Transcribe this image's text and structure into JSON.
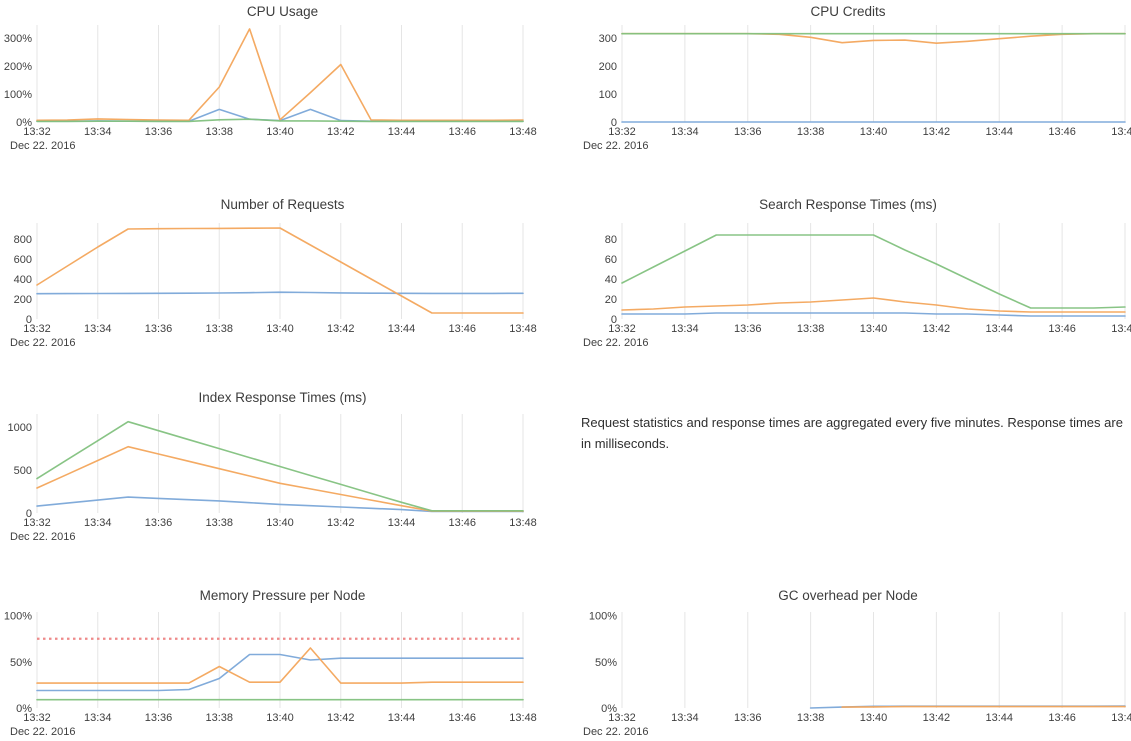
{
  "note": {
    "text": "Request statistics and response times are aggregated every five minutes. Response times are in milliseconds."
  },
  "style": {
    "gridline_color": "#e5e5e5",
    "title_color": "#3d3d3d",
    "tick_color": "#3f3f3f"
  },
  "chart_data": {
    "x_times": [
      "13:32",
      "13:33",
      "13:34",
      "13:35",
      "13:36",
      "13:37",
      "13:38",
      "13:39",
      "13:40",
      "13:41",
      "13:42",
      "13:43",
      "13:44",
      "13:45",
      "13:46",
      "13:47",
      "13:48"
    ],
    "x_tick_labels": [
      "13:32",
      "13:34",
      "13:36",
      "13:38",
      "13:40",
      "13:42",
      "13:44",
      "13:46",
      "13:48"
    ],
    "date_label": "Dec 22. 2016",
    "grid": "vertical-only",
    "legend": "none",
    "charts": [
      {
        "type": "line",
        "title": "CPU Usage",
        "ylim": [
          0,
          346
        ],
        "y_ticks": [
          {
            "value": 0,
            "label": "0%"
          },
          {
            "value": 100,
            "label": "100%"
          },
          {
            "value": 200,
            "label": "200%"
          },
          {
            "value": 300,
            "label": "300%"
          }
        ],
        "series": [
          {
            "name": "blue",
            "color": "#7aa6d8",
            "values": [
              3,
              3,
              4,
              3,
              3,
              3,
              45,
              10,
              5,
              45,
              5,
              3,
              3,
              3,
              3,
              3,
              3
            ]
          },
          {
            "name": "orange",
            "color": "#f3a55b",
            "values": [
              6,
              7,
              11,
              9,
              7,
              6,
              125,
              332,
              8,
              105,
              205,
              7,
              6,
              6,
              6,
              6,
              7
            ]
          },
          {
            "name": "green",
            "color": "#82c17e",
            "values": [
              2,
              2,
              3,
              3,
              2,
              2,
              8,
              10,
              4,
              4,
              3,
              2,
              2,
              2,
              2,
              2,
              2
            ]
          }
        ]
      },
      {
        "type": "line",
        "title": "CPU Credits",
        "ylim": [
          0,
          346
        ],
        "y_ticks": [
          {
            "value": 0,
            "label": "0"
          },
          {
            "value": 100,
            "label": "100"
          },
          {
            "value": 200,
            "label": "200"
          },
          {
            "value": 300,
            "label": "300"
          }
        ],
        "series": [
          {
            "name": "blue",
            "color": "#7aa6d8",
            "values": [
              0,
              0,
              0,
              0,
              0,
              0,
              0,
              0,
              0,
              0,
              0,
              0,
              0,
              0,
              0,
              0,
              0
            ]
          },
          {
            "name": "orange",
            "color": "#f3a55b",
            "values": [
              315,
              315,
              315,
              315,
              315,
              313,
              302,
              283,
              291,
              292,
              281,
              288,
              297,
              306,
              313,
              315,
              315
            ]
          },
          {
            "name": "green",
            "color": "#82c17e",
            "values": [
              315,
              315,
              315,
              315,
              315,
              315,
              315,
              315,
              315,
              315,
              315,
              315,
              315,
              315,
              315,
              315,
              315
            ]
          }
        ]
      },
      {
        "type": "line",
        "title": "Number of Requests",
        "ylim": [
          0,
          960
        ],
        "y_ticks": [
          {
            "value": 0,
            "label": "0"
          },
          {
            "value": 200,
            "label": "200"
          },
          {
            "value": 400,
            "label": "400"
          },
          {
            "value": 600,
            "label": "600"
          },
          {
            "value": 800,
            "label": "800"
          }
        ],
        "series": [
          {
            "name": "blue",
            "color": "#7aa6d8",
            "values": [
              253,
              254,
              255,
              256,
              257,
              258,
              260,
              263,
              268,
              265,
              261,
              258,
              257,
              256,
              256,
              256,
              257
            ]
          },
          {
            "name": "orange",
            "color": "#f3a55b",
            "values": [
              340,
              530,
              720,
              900,
              903,
              905,
              906,
              908,
              910,
              740,
              570,
              400,
              230,
              60,
              60,
              60,
              60
            ]
          }
        ]
      },
      {
        "type": "line",
        "title": "Search Response Times (ms)",
        "ylim": [
          0,
          96
        ],
        "y_ticks": [
          {
            "value": 0,
            "label": "0"
          },
          {
            "value": 20,
            "label": "20"
          },
          {
            "value": 40,
            "label": "40"
          },
          {
            "value": 60,
            "label": "60"
          },
          {
            "value": 80,
            "label": "80"
          }
        ],
        "series": [
          {
            "name": "blue",
            "color": "#7aa6d8",
            "values": [
              5,
              5,
              5,
              6,
              6,
              6,
              6,
              6,
              6,
              6,
              5,
              5,
              4,
              3,
              3,
              3,
              3
            ]
          },
          {
            "name": "orange",
            "color": "#f3a55b",
            "values": [
              9,
              10,
              12,
              13,
              14,
              16,
              17,
              19,
              21,
              17,
              14,
              10,
              8,
              7,
              7,
              7,
              7
            ]
          },
          {
            "name": "green",
            "color": "#82c17e",
            "values": [
              36,
              52,
              68,
              84,
              84,
              84,
              84,
              84,
              84,
              69,
              55,
              40,
              25,
              11,
              11,
              11,
              12
            ]
          }
        ]
      },
      {
        "type": "line",
        "title": "Index Response Times (ms)",
        "ylim": [
          0,
          1150
        ],
        "y_ticks": [
          {
            "value": 0,
            "label": "0"
          },
          {
            "value": 500,
            "label": "500"
          },
          {
            "value": 1000,
            "label": "1000"
          }
        ],
        "series": [
          {
            "name": "blue",
            "color": "#7aa6d8",
            "values": [
              80,
              115,
              150,
              185,
              170,
              155,
              140,
              120,
              100,
              85,
              70,
              55,
              40,
              18,
              18,
              18,
              18
            ]
          },
          {
            "name": "orange",
            "color": "#f3a55b",
            "values": [
              290,
              450,
              610,
              770,
              685,
              600,
              515,
              430,
              345,
              280,
              215,
              150,
              85,
              22,
              22,
              22,
              22
            ]
          },
          {
            "name": "green",
            "color": "#82c17e",
            "values": [
              400,
              620,
              840,
              1060,
              956,
              852,
              748,
              644,
              540,
              436,
              332,
              228,
              124,
              25,
              25,
              25,
              25
            ]
          }
        ]
      },
      {
        "type": "line",
        "title": "Memory Pressure per Node",
        "ylim": [
          0,
          104
        ],
        "y_ticks": [
          {
            "value": 0,
            "label": "0%"
          },
          {
            "value": 50,
            "label": "50%"
          },
          {
            "value": 100,
            "label": "100%"
          }
        ],
        "threshold": {
          "value": 75,
          "color": "#ee8a8a",
          "style": "dotted"
        },
        "series": [
          {
            "name": "blue",
            "color": "#7aa6d8",
            "values": [
              19,
              19,
              19,
              19,
              19,
              20,
              32,
              58,
              58,
              52,
              54,
              54,
              54,
              54,
              54,
              54,
              54
            ]
          },
          {
            "name": "orange",
            "color": "#f3a55b",
            "values": [
              27,
              27,
              27,
              27,
              27,
              27,
              45,
              28,
              28,
              65,
              27,
              27,
              27,
              28,
              28,
              28,
              28
            ]
          },
          {
            "name": "green",
            "color": "#82c17e",
            "values": [
              9,
              9,
              9,
              9,
              9,
              9,
              9,
              9,
              9,
              9,
              9,
              9,
              9,
              9,
              9,
              9,
              9
            ]
          }
        ]
      },
      {
        "type": "line",
        "title": "GC overhead per Node",
        "ylim": [
          0,
          104
        ],
        "y_ticks": [
          {
            "value": 0,
            "label": "0%"
          },
          {
            "value": 50,
            "label": "50%"
          },
          {
            "value": 100,
            "label": "100%"
          }
        ],
        "series": [
          {
            "name": "blue",
            "color": "#7aa6d8",
            "values": [
              null,
              null,
              null,
              null,
              null,
              null,
              0,
              1,
              1.8,
              2,
              2,
              2,
              2,
              2,
              2,
              2,
              2.2
            ]
          },
          {
            "name": "orange",
            "color": "#f3a55b",
            "values": [
              null,
              null,
              null,
              null,
              null,
              null,
              null,
              1,
              1.2,
              1.5,
              1.5,
              1.5,
              1.5,
              1.5,
              1.5,
              1.5,
              1.5
            ]
          }
        ]
      }
    ]
  }
}
